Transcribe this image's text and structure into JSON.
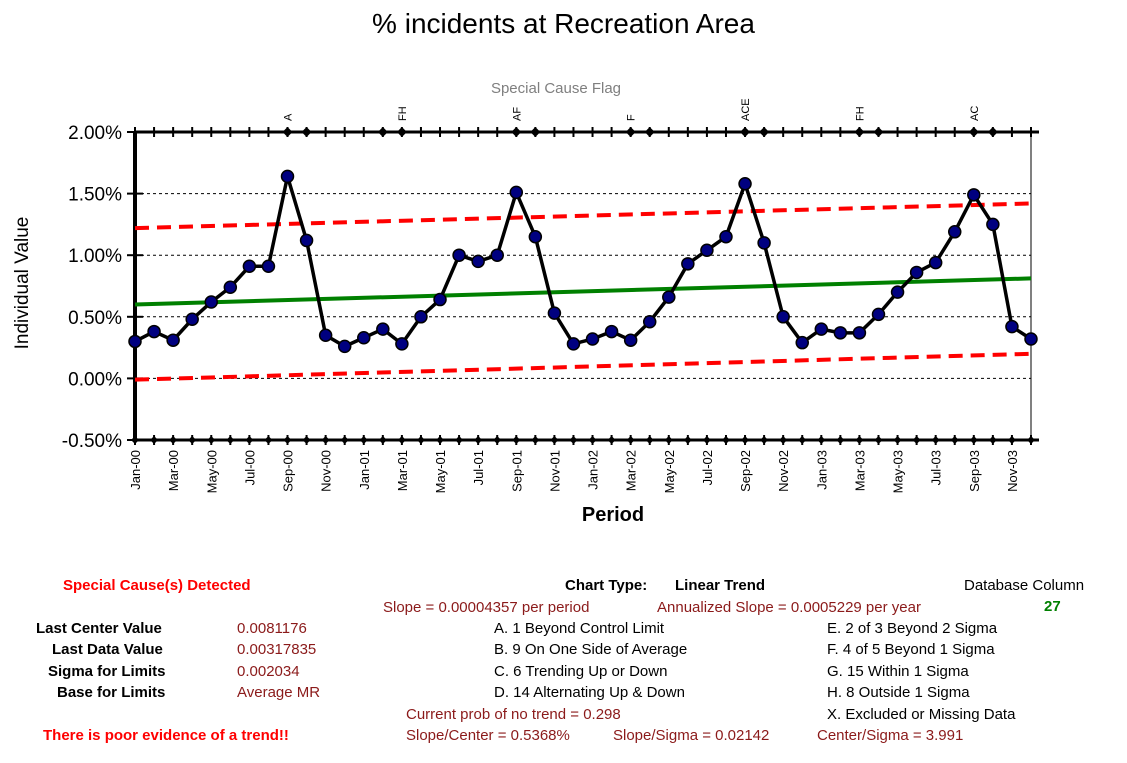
{
  "title": "% incidents at Recreation Area",
  "special_cause_flag_title": "Special Cause Flag",
  "chart_data": {
    "type": "line",
    "title": "% incidents at Recreation Area",
    "xlabel": "Period",
    "ylabel": "Individual Value",
    "ylim": [
      -0.005,
      0.02
    ],
    "yticks": [
      -0.005,
      0,
      0.005,
      0.01,
      0.015,
      0.02
    ],
    "ytick_labels": [
      "-0.50%",
      "0.00%",
      "0.50%",
      "1.00%",
      "1.50%",
      "2.00%"
    ],
    "x": [
      "Jan-00",
      "Feb-00",
      "Mar-00",
      "Apr-00",
      "May-00",
      "Jun-00",
      "Jul-00",
      "Aug-00",
      "Sep-00",
      "Oct-00",
      "Nov-00",
      "Dec-00",
      "Jan-01",
      "Feb-01",
      "Mar-01",
      "Apr-01",
      "May-01",
      "Jun-01",
      "Jul-01",
      "Aug-01",
      "Sep-01",
      "Oct-01",
      "Nov-01",
      "Dec-01",
      "Jan-02",
      "Feb-02",
      "Mar-02",
      "Apr-02",
      "May-02",
      "Jun-02",
      "Jul-02",
      "Aug-02",
      "Sep-02",
      "Oct-02",
      "Nov-02",
      "Dec-02",
      "Jan-03",
      "Feb-03",
      "Mar-03",
      "Apr-03",
      "May-03",
      "Jun-03",
      "Jul-03",
      "Aug-03",
      "Sep-03",
      "Oct-03",
      "Nov-03",
      "Dec-03"
    ],
    "xtick_labels": [
      "Jan-00",
      "Mar-00",
      "May-00",
      "Jul-00",
      "Sep-00",
      "Nov-00",
      "Jan-01",
      "Mar-01",
      "May-01",
      "Jul-01",
      "Sep-01",
      "Nov-01",
      "Jan-02",
      "Mar-02",
      "May-02",
      "Jul-02",
      "Sep-02",
      "Nov-02",
      "Jan-03",
      "Mar-03",
      "May-03",
      "Jul-03",
      "Sep-03",
      "Nov-03"
    ],
    "series": [
      {
        "values": [
          0.003,
          0.0038,
          0.0031,
          0.0048,
          0.0062,
          0.0074,
          0.0091,
          0.0091,
          0.0164,
          0.0112,
          0.0035,
          0.0026,
          0.0033,
          0.004,
          0.0028,
          0.005,
          0.0064,
          0.01,
          0.0095,
          0.01,
          0.0151,
          0.0115,
          0.0053,
          0.0028,
          0.0032,
          0.0038,
          0.0031,
          0.0046,
          0.0066,
          0.0093,
          0.0104,
          0.0115,
          0.0158,
          0.011,
          0.005,
          0.0029,
          0.004,
          0.0037,
          0.0037,
          0.0052,
          0.007,
          0.0086,
          0.0094,
          0.0119,
          0.0149,
          0.0125,
          0.0042,
          0.0032
        ],
        "color": "#000080",
        "line_color": "#000000"
      },
      {
        "name": "Center",
        "start": 0.006,
        "end": 0.0081176,
        "color": "#008000"
      },
      {
        "name": "UCL",
        "start": 0.0122,
        "end": 0.0142,
        "color": "#ff0000",
        "dashed": true
      },
      {
        "name": "LCL",
        "start": -0.0001,
        "end": 0.002,
        "color": "#ff0000",
        "dashed": true
      }
    ],
    "flags": [
      {
        "index": 8,
        "label": "A"
      },
      {
        "index": 9,
        "label": ""
      },
      {
        "index": 13,
        "label": ""
      },
      {
        "index": 14,
        "label": "FH"
      },
      {
        "index": 20,
        "label": "AF"
      },
      {
        "index": 21,
        "label": ""
      },
      {
        "index": 26,
        "label": "F"
      },
      {
        "index": 27,
        "label": ""
      },
      {
        "index": 32,
        "label": "ACE"
      },
      {
        "index": 33,
        "label": ""
      },
      {
        "index": 38,
        "label": "FH"
      },
      {
        "index": 39,
        "label": ""
      },
      {
        "index": 44,
        "label": "AC"
      },
      {
        "index": 45,
        "label": ""
      }
    ],
    "grid": true
  },
  "footer": {
    "special_causes": "Special Cause(s) Detected",
    "chart_type_label": "Chart Type:",
    "chart_type_value": "Linear Trend",
    "database_column_label": "Database Column",
    "database_column_value": "27",
    "slope": "Slope = 0.00004357 per period",
    "annualized_slope": "Annualized Slope = 0.0005229 per year",
    "last_center_label": "Last Center Value",
    "last_center_value": "0.0081176",
    "last_data_label": "Last Data Value",
    "last_data_value": "0.00317835",
    "sigma_label": "Sigma for Limits",
    "sigma_value": "0.002034",
    "base_label": "Base for Limits",
    "base_value": "Average MR",
    "rule_a": "A.  1 Beyond Control Limit",
    "rule_b": "B.  9 On One Side of Average",
    "rule_c": "C.  6 Trending Up or Down",
    "rule_d": "D.  14 Alternating  Up & Down",
    "rule_e": "E.  2 of 3 Beyond 2 Sigma",
    "rule_f": "F.  4 of 5 Beyond 1 Sigma",
    "rule_g": "G.  15 Within 1 Sigma",
    "rule_h": "H.  8 Outside 1 Sigma",
    "rule_x": "X.  Excluded or Missing Data",
    "prob_no_trend": "Current prob of no trend = 0.298",
    "slope_center": "Slope/Center = 0.5368%",
    "slope_sigma": "Slope/Sigma = 0.02142",
    "center_sigma": "Center/Sigma = 3.991",
    "trend_evidence": "There is poor evidence of a trend!!"
  }
}
